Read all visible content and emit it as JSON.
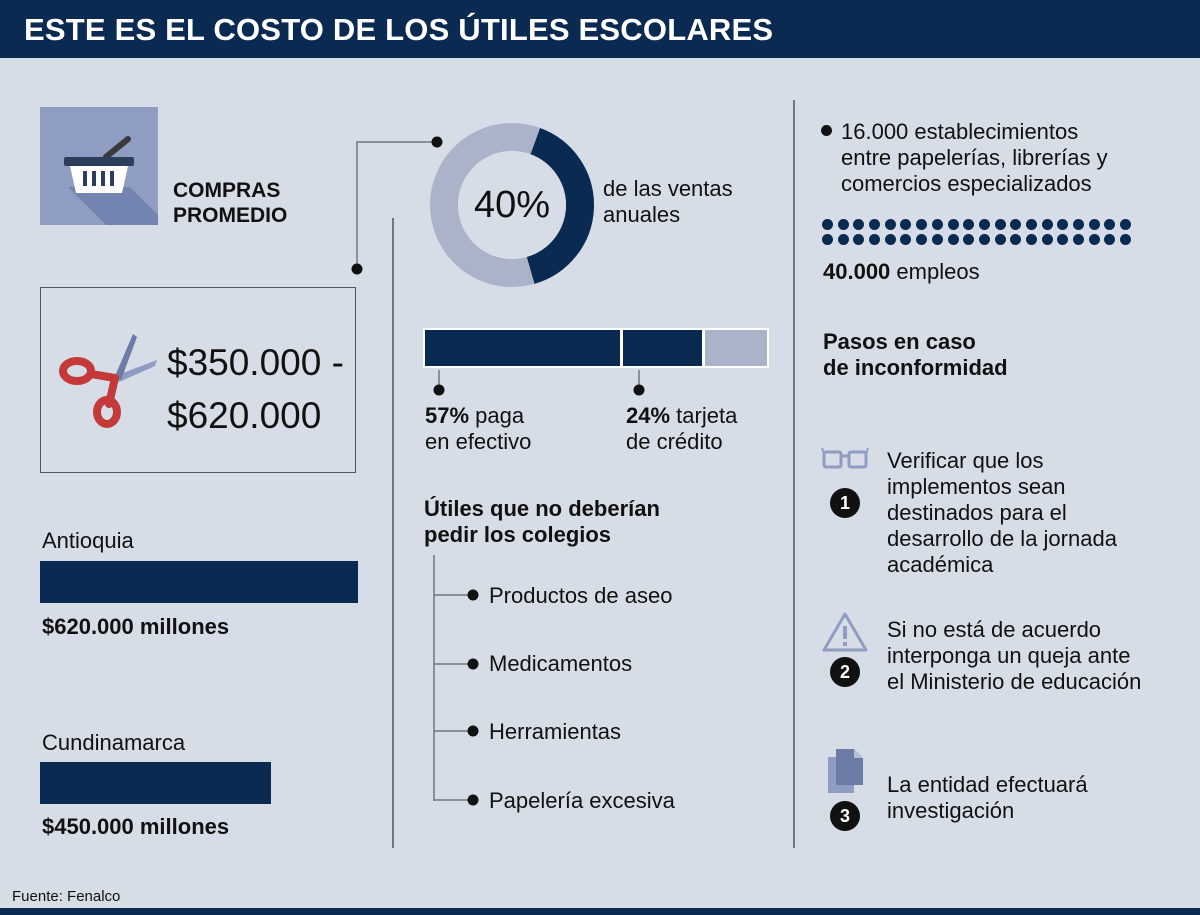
{
  "header": {
    "title": "ESTE ES EL COSTO DE LOS ÚTILES ESCOLARES"
  },
  "compras": {
    "label_line1": "COMPRAS",
    "label_line2": "PROMEDIO",
    "icon": "basket-icon"
  },
  "rango": {
    "line1": "$350.000 -",
    "line2": "$620.000",
    "icon": "scissors-icon"
  },
  "regiones": [
    {
      "name": "Antioquia",
      "value": 620000,
      "label": "$620.000 millones"
    },
    {
      "name": "Cundinamarca",
      "value": 450000,
      "label": "$450.000 millones"
    }
  ],
  "ventas": {
    "percent_label": "40%",
    "percent": 40,
    "text_line1": "de las ventas",
    "text_line2": "anuales"
  },
  "pagos": {
    "segments": [
      {
        "percent": 57,
        "label_strong": "57%",
        "label_rest": " paga",
        "label_line2": "en efectivo",
        "color": "#0b2a52"
      },
      {
        "percent": 24,
        "label_strong": "24%",
        "label_rest": " tarjeta",
        "label_line2": "de crédito",
        "color": "#0b2a52"
      },
      {
        "percent": 19,
        "color": "#aab3ca"
      }
    ]
  },
  "no_pedir": {
    "title_line1": "Útiles que no deberían",
    "title_line2": "pedir los colegios",
    "items": [
      "Productos de aseo",
      "Medicamentos",
      "Herramientas",
      "Papelería excesiva"
    ]
  },
  "establecimientos": {
    "line1": "16.000 establecimientos",
    "line2": "entre papelerías, librerías y",
    "line3": "comercios especializados"
  },
  "empleos": {
    "number": "40.000",
    "text": " empleos"
  },
  "pasos": {
    "title_line1": "Pasos en caso",
    "title_line2": "de inconformidad",
    "steps": [
      {
        "num": "1",
        "icon": "glasses-icon",
        "lines": [
          "Verificar que los",
          "implementos sean",
          "destinados para el",
          "desarrollo de la jornada",
          "académica"
        ]
      },
      {
        "num": "2",
        "icon": "warning-icon",
        "lines": [
          "Si no está de acuerdo",
          "interponga un queja ante",
          "el Ministerio de educación"
        ]
      },
      {
        "num": "3",
        "icon": "documents-icon",
        "lines": [
          "La entidad efectuará",
          "investigación"
        ]
      }
    ]
  },
  "fuente": "Fuente: Fenalco",
  "colors": {
    "navy": "#0b2a52",
    "light_segment": "#aab3ca",
    "background": "#d6dde7",
    "scissors_red": "#c43a3a",
    "icon_tile": "#8f9dc2"
  }
}
